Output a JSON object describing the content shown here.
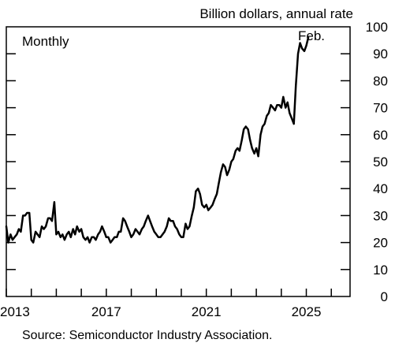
{
  "chart_data": {
    "type": "line",
    "title": "",
    "unit_label": "Billion dollars, annual rate",
    "frequency_note": "Monthly",
    "end_label": "Feb.",
    "source": "Source:  Semiconductor Industry Association.",
    "xlabel": "",
    "ylabel": "",
    "ylim": [
      0,
      100
    ],
    "xlim": [
      2013.0,
      2026.75
    ],
    "y_ticks": [
      0,
      10,
      20,
      30,
      40,
      50,
      60,
      70,
      80,
      90,
      100
    ],
    "x_ticks": [
      2013,
      2017,
      2021,
      2025
    ],
    "y_axis_side": "right",
    "grid": false,
    "series": [
      {
        "color": "#000000",
        "x": [
          2013.0,
          2013.08,
          2013.17,
          2013.25,
          2013.33,
          2013.42,
          2013.5,
          2013.58,
          2013.67,
          2013.75,
          2013.83,
          2013.92,
          2014.0,
          2014.08,
          2014.17,
          2014.25,
          2014.33,
          2014.42,
          2014.5,
          2014.58,
          2014.67,
          2014.75,
          2014.83,
          2014.92,
          2015.0,
          2015.08,
          2015.17,
          2015.25,
          2015.33,
          2015.42,
          2015.5,
          2015.58,
          2015.67,
          2015.75,
          2015.83,
          2015.92,
          2016.0,
          2016.08,
          2016.17,
          2016.25,
          2016.33,
          2016.42,
          2016.5,
          2016.58,
          2016.67,
          2016.75,
          2016.83,
          2016.92,
          2017.0,
          2017.08,
          2017.17,
          2017.25,
          2017.33,
          2017.42,
          2017.5,
          2017.58,
          2017.67,
          2017.75,
          2017.83,
          2017.92,
          2018.0,
          2018.08,
          2018.17,
          2018.25,
          2018.33,
          2018.42,
          2018.5,
          2018.58,
          2018.67,
          2018.75,
          2018.83,
          2018.92,
          2019.0,
          2019.08,
          2019.17,
          2019.25,
          2019.33,
          2019.42,
          2019.5,
          2019.58,
          2019.67,
          2019.75,
          2019.83,
          2019.92,
          2020.0,
          2020.08,
          2020.17,
          2020.25,
          2020.33,
          2020.42,
          2020.5,
          2020.58,
          2020.67,
          2020.75,
          2020.83,
          2020.92,
          2021.0,
          2021.08,
          2021.17,
          2021.25,
          2021.33,
          2021.42,
          2021.5,
          2021.58,
          2021.67,
          2021.75,
          2021.83,
          2021.92,
          2022.0,
          2022.08,
          2022.17,
          2022.25,
          2022.33,
          2022.42,
          2022.5,
          2022.58,
          2022.67,
          2022.75,
          2022.83,
          2022.92,
          2023.0,
          2023.08,
          2023.17,
          2023.25,
          2023.33,
          2023.42,
          2023.5,
          2023.58,
          2023.67,
          2023.75,
          2023.83,
          2023.92,
          2024.0,
          2024.08,
          2024.17,
          2024.25,
          2024.33,
          2024.42,
          2024.5,
          2024.58,
          2024.67,
          2024.75,
          2024.83,
          2024.92,
          2025.0,
          2025.08
        ],
        "values": [
          26,
          20,
          23,
          21,
          22,
          23,
          25,
          24,
          30,
          30,
          31,
          31,
          21,
          20,
          24,
          23,
          22,
          26,
          25,
          26,
          29,
          29,
          28,
          35,
          23,
          24,
          22,
          23,
          21,
          23,
          24,
          22,
          25,
          23,
          26,
          24,
          25,
          22,
          21,
          22,
          20,
          22,
          22,
          21,
          23,
          24,
          26,
          24,
          22,
          22,
          20,
          21,
          22,
          22,
          24,
          24,
          29,
          28,
          26,
          24,
          22,
          23,
          25,
          24,
          23,
          25,
          26,
          28,
          30,
          28,
          26,
          24,
          23,
          22,
          22,
          23,
          24,
          26,
          29,
          28,
          28,
          26,
          25,
          23,
          22,
          22,
          27,
          25,
          26,
          30,
          33,
          39,
          40,
          38,
          34,
          33,
          34,
          32,
          33,
          34,
          36,
          38,
          42,
          46,
          49,
          48,
          45,
          47,
          50,
          51,
          54,
          55,
          54,
          58,
          62,
          63,
          62,
          58,
          55,
          53,
          55,
          52,
          60,
          63,
          64,
          67,
          68,
          71,
          70,
          69,
          71,
          71,
          70,
          74,
          70,
          72,
          68,
          66,
          64,
          78,
          90,
          94,
          92,
          91,
          93,
          96
        ]
      }
    ]
  }
}
